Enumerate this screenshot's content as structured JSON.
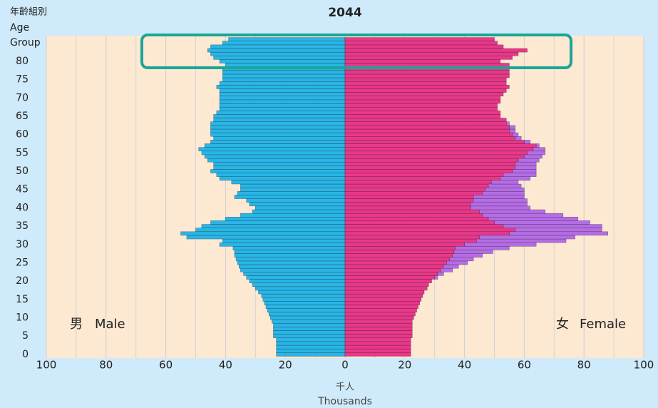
{
  "chart_data": {
    "type": "pyramid",
    "title": "2044",
    "y_axis_label": [
      "年齡組別",
      "Age",
      "Group"
    ],
    "x_axis_label": [
      "千人",
      "Thousands"
    ],
    "annotations": [
      "男",
      "女"
    ],
    "y": [
      0,
      1,
      2,
      3,
      4,
      5,
      6,
      7,
      8,
      9,
      10,
      11,
      12,
      13,
      14,
      15,
      16,
      17,
      18,
      19,
      20,
      21,
      22,
      23,
      24,
      25,
      26,
      27,
      28,
      29,
      30,
      31,
      32,
      33,
      34,
      35,
      36,
      37,
      38,
      39,
      40,
      41,
      42,
      43,
      44,
      45,
      46,
      47,
      48,
      49,
      50,
      51,
      52,
      53,
      54,
      55,
      56,
      57,
      58,
      59,
      60,
      61,
      62,
      63,
      64,
      65,
      66,
      67,
      68,
      69,
      70,
      71,
      72,
      73,
      74,
      75,
      76,
      77,
      78,
      79,
      80,
      81,
      82,
      83,
      84,
      85,
      86
    ],
    "series": [
      {
        "name": "Male",
        "side": "left",
        "color": "#29b5e6",
        "values": [
          23,
          23,
          23,
          23,
          23,
          24,
          24,
          24,
          24,
          24.5,
          25,
          25.5,
          26,
          26.5,
          27,
          27.5,
          28,
          29,
          30,
          31,
          32,
          33,
          34,
          35,
          35.5,
          36,
          36.5,
          37,
          37,
          37.5,
          42,
          41,
          53,
          55,
          50,
          48,
          45,
          40,
          35,
          31,
          30,
          32,
          33,
          37,
          36,
          35,
          35,
          38,
          42,
          43,
          45,
          44,
          44,
          46,
          47,
          48,
          49,
          47,
          45,
          44,
          45,
          45,
          45,
          45,
          44,
          44,
          43,
          42,
          42,
          42,
          42,
          42,
          42,
          43,
          42,
          41,
          41,
          41,
          41,
          40,
          42,
          44,
          45,
          46,
          45,
          41,
          39
        ]
      },
      {
        "name": "Female",
        "side": "right",
        "color": "#e8388a",
        "values": [
          22,
          22,
          22,
          22,
          22,
          22.5,
          22.5,
          22.5,
          22.5,
          22.5,
          23,
          23.5,
          24,
          24.5,
          25,
          25.5,
          26,
          26.5,
          27.5,
          28,
          29,
          30,
          31,
          32,
          33,
          34,
          35,
          36,
          36.5,
          37,
          40,
          44,
          45,
          55,
          57,
          53,
          50,
          48,
          46,
          45,
          42,
          42,
          43,
          43,
          46,
          47,
          48,
          49,
          52,
          53,
          56,
          57,
          57,
          58,
          60,
          61,
          63,
          64,
          60,
          57,
          56,
          55,
          55,
          54,
          54,
          52,
          52,
          51,
          51,
          52,
          52,
          53,
          54,
          55,
          54,
          54,
          55,
          55,
          55,
          55,
          52,
          56,
          58,
          61,
          53,
          51,
          50
        ]
      },
      {
        "side": "right",
        "stack": true,
        "color": "#b56de6",
        "values": [
          0,
          0,
          0,
          0,
          0,
          0,
          0,
          0,
          0,
          0,
          0,
          0,
          0,
          0,
          0,
          0,
          0,
          0,
          0,
          0,
          0,
          1,
          2,
          4,
          5,
          7,
          8,
          10,
          13,
          18,
          24,
          30,
          32,
          33,
          29,
          33,
          32,
          30,
          27,
          22,
          20,
          19,
          18,
          17,
          14,
          13,
          11,
          9,
          10,
          11,
          8,
          7,
          7,
          7,
          6,
          6,
          4,
          1,
          2,
          2,
          2,
          2,
          2,
          1,
          0,
          0,
          0,
          0,
          0,
          0,
          0,
          0,
          0,
          0,
          0,
          0,
          0,
          0,
          0,
          0,
          0,
          0,
          0,
          0,
          0,
          0,
          0
        ]
      }
    ],
    "xlim": [
      -100,
      100
    ],
    "xticks": [
      {
        "value": -100,
        "label": "100"
      },
      {
        "value": -80,
        "label": "80"
      },
      {
        "value": -60,
        "label": "60"
      },
      {
        "value": -40,
        "label": "40"
      },
      {
        "value": -20,
        "label": "20"
      },
      0,
      20,
      40,
      60,
      80,
      100
    ],
    "xminor": [
      -90,
      -70,
      -50,
      -30,
      -10,
      10,
      30,
      50,
      70,
      90
    ],
    "ylim": [
      -1,
      87
    ],
    "yticks": [
      0,
      5,
      10,
      15,
      20,
      25,
      30,
      35,
      40,
      45,
      50,
      55,
      60,
      65,
      70,
      75,
      80
    ],
    "grid": true
  }
}
